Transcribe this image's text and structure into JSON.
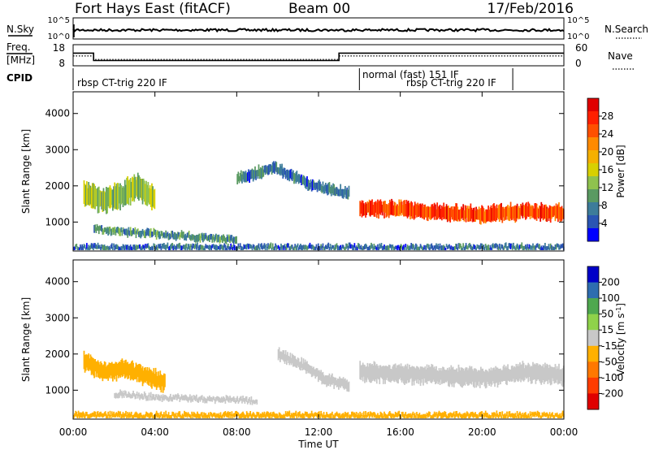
{
  "header": {
    "station": "Fort Hays East (fitACF)",
    "beam": "Beam 00",
    "date": "17/Feb/2016"
  },
  "summary": {
    "nsky_label": "N.Sky",
    "nsearch_label": "N.Search",
    "freq_label_1": "Freq.",
    "freq_label_2": "[MHz]",
    "nave_label": "Nave",
    "cpid_label": "CPID",
    "nsky_ticks": [
      "10^5",
      "10^0"
    ],
    "nsearch_ticks": [
      "10^5",
      "10^0"
    ],
    "freq_ticks": [
      "18",
      "8"
    ],
    "nave_ticks": [
      "60",
      "0"
    ],
    "cpid_segments": [
      {
        "label": "rbsp CT-trig 220 IF",
        "start_hour": 0
      },
      {
        "label": "normal (fast) 151 IF",
        "start_hour": 14
      },
      {
        "label": "rbsp CT-trig 220 IF",
        "start_hour": 14.7
      }
    ],
    "cpid_markers_hours": [
      14,
      21.5
    ],
    "freq_series": {
      "x_hours": [
        0,
        1,
        1,
        13,
        13,
        24
      ],
      "y_mhz": [
        14,
        14,
        10.5,
        10.5,
        14,
        14
      ]
    },
    "nave_series": {
      "x_hours": [
        0,
        1,
        1,
        13,
        13,
        24
      ],
      "y": [
        28,
        28,
        18,
        18,
        28,
        28
      ]
    }
  },
  "chart_data": [
    {
      "type": "heatmap",
      "name": "power",
      "ylabel": "Slant Range [km]",
      "yticks": [
        "1000",
        "2000",
        "3000",
        "4000"
      ],
      "ylim": [
        200,
        4600
      ],
      "xlim": [
        0,
        24
      ],
      "colorbar": {
        "label": "Power [dB]",
        "ticks": [
          "4",
          "8",
          "12",
          "16",
          "20",
          "24",
          "28"
        ],
        "range": [
          0,
          30
        ],
        "colors": [
          "#0000ff",
          "#2a55b3",
          "#3d7c9a",
          "#5a9a62",
          "#8fc24e",
          "#d8d000",
          "#f5b000",
          "#ff8a00",
          "#ff5000",
          "#ff2000",
          "#e00000"
        ]
      },
      "bands": [
        {
          "x_start_hours": 14.0,
          "x_end_hours": 24.0,
          "range_center_km": [
            1400,
            1350,
            1250,
            1200,
            1300,
            1250
          ],
          "range_width_km": 450,
          "value_db": 24
        },
        {
          "x_start_hours": 0.5,
          "x_end_hours": 4.0,
          "range_center_km": [
            1800,
            1600,
            1700,
            2000,
            1600
          ],
          "range_width_km": 700,
          "value_db": 12
        },
        {
          "x_start_hours": 1.0,
          "x_end_hours": 8.0,
          "range_center_km": [
            800,
            700,
            600,
            500
          ],
          "range_width_km": 200,
          "value_db": 8
        },
        {
          "x_start_hours": 8.0,
          "x_end_hours": 13.5,
          "range_center_km": [
            2200,
            2500,
            2000,
            1800
          ],
          "range_width_km": 300,
          "value_db": 6
        },
        {
          "x_start_hours": 0.0,
          "x_end_hours": 24.0,
          "range_center_km": [
            300,
            300,
            300,
            300
          ],
          "range_width_km": 150,
          "value_db": 6
        }
      ]
    },
    {
      "type": "heatmap",
      "name": "velocity",
      "ylabel": "Slant Range [km]",
      "yticks": [
        "1000",
        "2000",
        "3000",
        "4000"
      ],
      "ylim": [
        200,
        4600
      ],
      "xlim": [
        0,
        24
      ],
      "xlabel": "Time UT",
      "xticks": [
        "00:00",
        "04:00",
        "08:00",
        "12:00",
        "16:00",
        "20:00",
        "00:00"
      ],
      "xtick_hours": [
        0,
        4,
        8,
        12,
        16,
        20,
        24
      ],
      "colorbar": {
        "label": "Velocity [m s",
        "label_sup": "-1",
        "label_end": "]",
        "ticks": [
          "200",
          "100",
          "50",
          "15",
          "-15",
          "-50",
          "-100",
          "-200"
        ],
        "colors": [
          "#0000c8",
          "#2e6db0",
          "#4fa84f",
          "#8fd24a",
          "#c8c8c8",
          "#ffb000",
          "#ff7800",
          "#ff3c00",
          "#e00000"
        ]
      },
      "bands": [
        {
          "x_start_hours": 14.0,
          "x_end_hours": 24.0,
          "range_center_km": [
            1500,
            1450,
            1400,
            1350,
            1500,
            1400
          ],
          "range_width_km": 500,
          "value_ms": 0
        },
        {
          "x_start_hours": 0.5,
          "x_end_hours": 4.5,
          "range_center_km": [
            1800,
            1500,
            1600,
            1400,
            1200
          ],
          "range_width_km": 500,
          "value_ms": -40
        },
        {
          "x_start_hours": 2.0,
          "x_end_hours": 9.0,
          "range_center_km": [
            900,
            800,
            750,
            700
          ],
          "range_width_km": 150,
          "value_ms": 0
        },
        {
          "x_start_hours": 10.0,
          "x_end_hours": 13.5,
          "range_center_km": [
            2000,
            1700,
            1300,
            1100
          ],
          "range_width_km": 300,
          "value_ms": 10
        },
        {
          "x_start_hours": 0.0,
          "x_end_hours": 24.0,
          "range_center_km": [
            300,
            300,
            300,
            300
          ],
          "range_width_km": 150,
          "value_ms": -40
        }
      ]
    }
  ]
}
